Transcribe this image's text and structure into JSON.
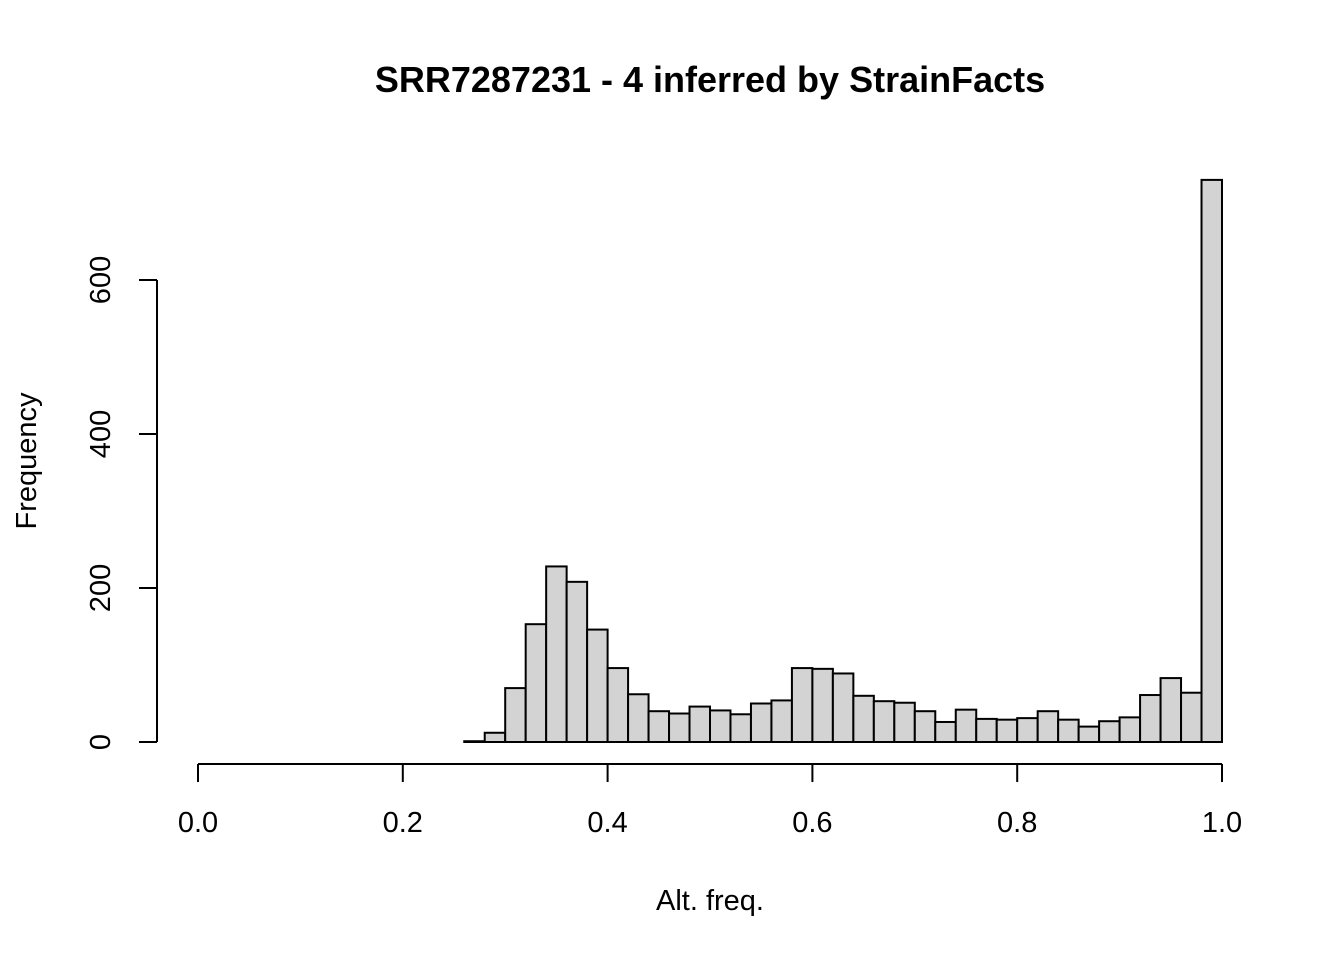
{
  "chart_data": {
    "type": "bar",
    "title": "SRR7287231 - 4 inferred by StrainFacts",
    "xlabel": "Alt. freq.",
    "ylabel": "Frequency",
    "xlim": [
      0.0,
      1.0
    ],
    "ylim": [
      0,
      730
    ],
    "x_ticks": [
      "0.0",
      "0.2",
      "0.4",
      "0.6",
      "0.8",
      "1.0"
    ],
    "y_ticks": [
      "0",
      "200",
      "400",
      "600"
    ],
    "grid": false,
    "bar_fill": "#d3d3d3",
    "bar_edge": "#000000",
    "bin_width": 0.02,
    "bins": [
      {
        "x0": 0.26,
        "x1": 0.28,
        "count": 1
      },
      {
        "x0": 0.28,
        "x1": 0.3,
        "count": 12
      },
      {
        "x0": 0.3,
        "x1": 0.32,
        "count": 70
      },
      {
        "x0": 0.32,
        "x1": 0.34,
        "count": 153
      },
      {
        "x0": 0.34,
        "x1": 0.36,
        "count": 228
      },
      {
        "x0": 0.36,
        "x1": 0.38,
        "count": 208
      },
      {
        "x0": 0.38,
        "x1": 0.4,
        "count": 146
      },
      {
        "x0": 0.4,
        "x1": 0.42,
        "count": 96
      },
      {
        "x0": 0.42,
        "x1": 0.44,
        "count": 62
      },
      {
        "x0": 0.44,
        "x1": 0.46,
        "count": 40
      },
      {
        "x0": 0.46,
        "x1": 0.48,
        "count": 37
      },
      {
        "x0": 0.48,
        "x1": 0.5,
        "count": 46
      },
      {
        "x0": 0.5,
        "x1": 0.52,
        "count": 41
      },
      {
        "x0": 0.52,
        "x1": 0.54,
        "count": 36
      },
      {
        "x0": 0.54,
        "x1": 0.56,
        "count": 50
      },
      {
        "x0": 0.56,
        "x1": 0.58,
        "count": 54
      },
      {
        "x0": 0.58,
        "x1": 0.6,
        "count": 96
      },
      {
        "x0": 0.6,
        "x1": 0.62,
        "count": 95
      },
      {
        "x0": 0.62,
        "x1": 0.64,
        "count": 89
      },
      {
        "x0": 0.64,
        "x1": 0.66,
        "count": 60
      },
      {
        "x0": 0.66,
        "x1": 0.68,
        "count": 53
      },
      {
        "x0": 0.68,
        "x1": 0.7,
        "count": 51
      },
      {
        "x0": 0.7,
        "x1": 0.72,
        "count": 40
      },
      {
        "x0": 0.72,
        "x1": 0.74,
        "count": 26
      },
      {
        "x0": 0.74,
        "x1": 0.76,
        "count": 42
      },
      {
        "x0": 0.76,
        "x1": 0.78,
        "count": 30
      },
      {
        "x0": 0.78,
        "x1": 0.8,
        "count": 29
      },
      {
        "x0": 0.8,
        "x1": 0.82,
        "count": 31
      },
      {
        "x0": 0.82,
        "x1": 0.84,
        "count": 40
      },
      {
        "x0": 0.84,
        "x1": 0.86,
        "count": 29
      },
      {
        "x0": 0.86,
        "x1": 0.88,
        "count": 20
      },
      {
        "x0": 0.88,
        "x1": 0.9,
        "count": 27
      },
      {
        "x0": 0.9,
        "x1": 0.92,
        "count": 32
      },
      {
        "x0": 0.92,
        "x1": 0.94,
        "count": 61
      },
      {
        "x0": 0.94,
        "x1": 0.96,
        "count": 83
      },
      {
        "x0": 0.96,
        "x1": 0.98,
        "count": 64
      },
      {
        "x0": 0.98,
        "x1": 1.0,
        "count": 730
      }
    ]
  }
}
